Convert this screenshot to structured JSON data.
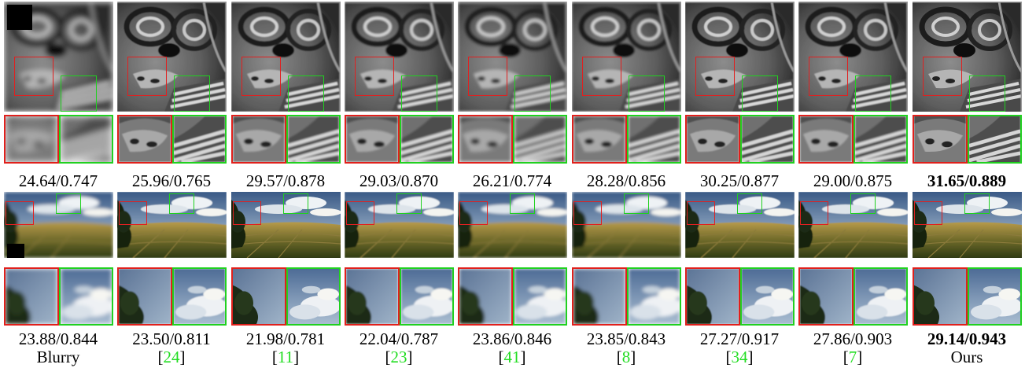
{
  "methods": [
    {
      "label": "Blurry",
      "cite": ""
    },
    {
      "label": "",
      "cite": "24"
    },
    {
      "label": "",
      "cite": "11"
    },
    {
      "label": "",
      "cite": "23"
    },
    {
      "label": "",
      "cite": "41"
    },
    {
      "label": "",
      "cite": "8"
    },
    {
      "label": "",
      "cite": "34"
    },
    {
      "label": "",
      "cite": "7"
    },
    {
      "label": "Ours",
      "cite": ""
    }
  ],
  "rows": [
    {
      "name": "face",
      "scores": [
        "24.64/0.747",
        "25.96/0.765",
        "29.57/0.878",
        "29.03/0.870",
        "26.21/0.774",
        "28.28/0.856",
        "30.25/0.877",
        "29.00/0.875",
        "31.65/0.889"
      ],
      "best_index": 8
    },
    {
      "name": "landscape",
      "scores": [
        "23.88/0.844",
        "23.50/0.811",
        "21.98/0.781",
        "22.04/0.787",
        "23.86/0.846",
        "23.85/0.843",
        "27.27/0.917",
        "27.86/0.903",
        "29.14/0.943"
      ],
      "best_index": 8
    }
  ],
  "colors": {
    "roi_red": "#e0201c",
    "roi_green": "#20d020",
    "cite": "#22dd22"
  }
}
